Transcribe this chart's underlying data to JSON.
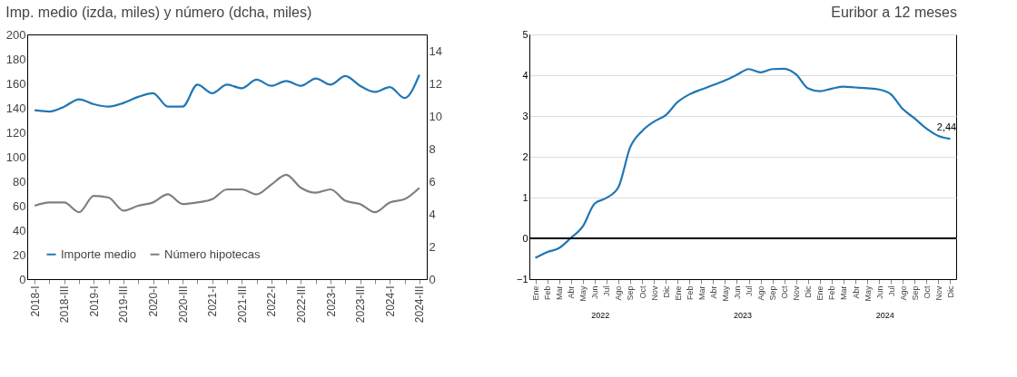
{
  "chart_data": [
    {
      "type": "line",
      "title": "Imp. medio (izda, miles) y número (dcha, miles)",
      "categories": [
        "2018-I",
        null,
        "2018-III",
        null,
        "2019-I",
        null,
        "2019-III",
        null,
        "2020-I",
        null,
        "2020-III",
        null,
        "2021-I",
        null,
        "2021-III",
        null,
        "2022-I",
        null,
        "2022-III",
        null,
        "2023-I",
        null,
        "2023-III",
        null,
        "2024-I",
        null,
        "2024-III"
      ],
      "series": [
        {
          "name": "Importe medio",
          "color": "#2077b4",
          "values": [
            138,
            137,
            141,
            147,
            143,
            141,
            144,
            149,
            152,
            141,
            141,
            159,
            152,
            159,
            156,
            163,
            158,
            162,
            158,
            164,
            159,
            166,
            158,
            153,
            157,
            148,
            167
          ]
        },
        {
          "name": "Número hipotecas",
          "color": "#7f7f7f",
          "axis": "y2",
          "values": [
            4.5,
            4.7,
            4.7,
            4.1,
            5.1,
            5.0,
            4.2,
            4.5,
            4.7,
            5.2,
            4.6,
            4.7,
            4.9,
            5.5,
            5.5,
            5.2,
            5.8,
            6.4,
            5.6,
            5.3,
            5.5,
            4.8,
            4.6,
            4.1,
            4.7,
            4.9,
            5.6
          ]
        }
      ],
      "ylim": [
        0,
        200
      ],
      "yticks": [
        0,
        20,
        40,
        60,
        80,
        100,
        120,
        140,
        160,
        180,
        200
      ],
      "y2lim": [
        0,
        15
      ],
      "y2ticks": [
        0,
        2,
        4,
        6,
        8,
        10,
        12,
        14
      ],
      "grid": false,
      "legend": "bottom left",
      "line_style": "solid"
    },
    {
      "type": "line",
      "title": "Euribor a 12 meses",
      "categories": [
        "Ene",
        "Feb",
        "Mar",
        "Abr",
        "May",
        "Jun",
        "Jul",
        "Ago",
        "Sep",
        "Oct",
        "Nov",
        "Dic",
        "Ene",
        "Feb",
        "Mar",
        "Abr",
        "May",
        "Jun",
        "Jul",
        "Ago",
        "Sep",
        "Oct",
        "Nov",
        "Dic",
        "Ene",
        "Feb",
        "Mar",
        "Abr",
        "May",
        "Jun",
        "Jul",
        "Ago",
        "Sep",
        "Oct",
        "Nov",
        "Dic"
      ],
      "series": [
        {
          "color": "#2077b4",
          "values": [
            -0.48,
            -0.34,
            -0.24,
            0.01,
            0.29,
            0.85,
            0.99,
            1.25,
            2.23,
            2.63,
            2.86,
            3.02,
            3.34,
            3.53,
            3.65,
            3.76,
            3.87,
            4.01,
            4.15,
            4.07,
            4.15,
            4.16,
            4.02,
            3.68,
            3.61,
            3.67,
            3.72,
            3.7,
            3.68,
            3.65,
            3.53,
            3.17,
            2.94,
            2.69,
            2.51,
            2.44
          ],
          "value_labels": [
            null,
            null,
            null,
            null,
            null,
            null,
            null,
            null,
            null,
            null,
            null,
            null,
            null,
            null,
            null,
            null,
            null,
            null,
            null,
            null,
            null,
            null,
            null,
            null,
            null,
            null,
            null,
            null,
            null,
            null,
            null,
            null,
            null,
            null,
            null,
            "2,44"
          ]
        }
      ],
      "ylim": [
        -1,
        5
      ],
      "yticks": [
        -1,
        0,
        1,
        2,
        3,
        4,
        5
      ],
      "ref_lines": [
        {
          "axis": "y",
          "value": 0,
          "color": "#000000"
        }
      ],
      "annotations": [
        "2022",
        "2023",
        "2024"
      ],
      "grid": "y",
      "legend": false,
      "line_style": "solid"
    }
  ]
}
